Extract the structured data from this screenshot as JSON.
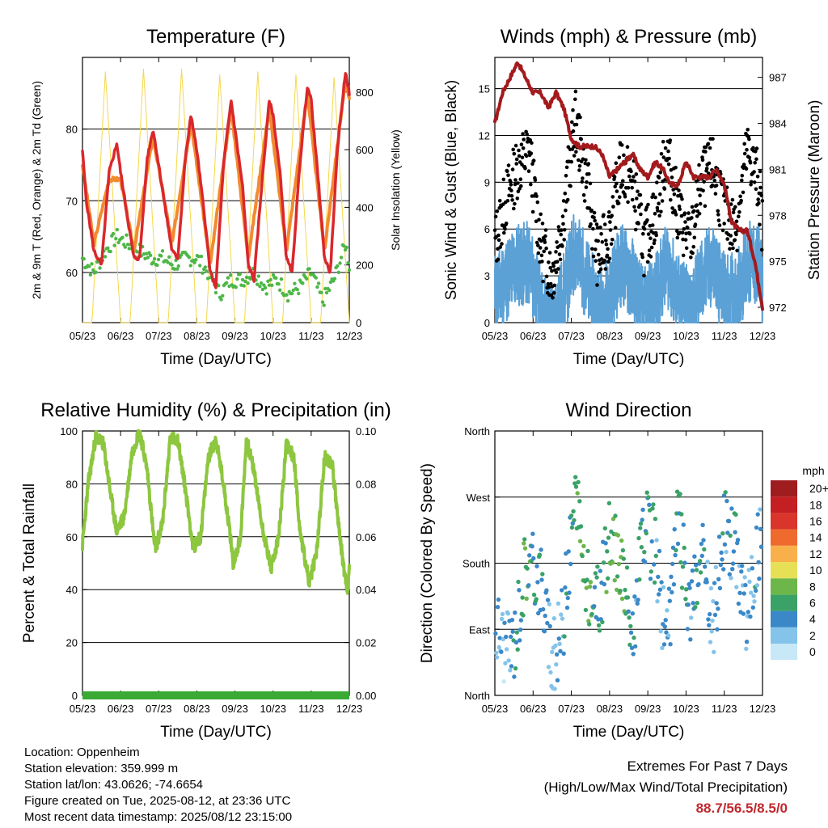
{
  "temperature": {
    "title": "Temperature (F)",
    "ylabel_left": "2m & 9m T (Red, Orange) & 2m Td (Green)",
    "ylabel_right": "Solar Insolation (Yellow)",
    "xlabel": "Time (Day/UTC)",
    "left_ticks": [
      "60",
      "70",
      "80"
    ],
    "right_ticks": [
      "0",
      "200",
      "400",
      "600",
      "800"
    ],
    "x_ticks": [
      "05/23",
      "06/23",
      "07/23",
      "08/23",
      "09/23",
      "10/23",
      "11/23",
      "12/23"
    ]
  },
  "winds": {
    "title": "Winds (mph) & Pressure (mb)",
    "ylabel_left": "Sonic Wind & Gust (Blue, Black)",
    "ylabel_right": "Station Pressure (Maroon)",
    "xlabel": "Time (Day/UTC)",
    "left_ticks": [
      "0",
      "3",
      "6",
      "9",
      "12",
      "15"
    ],
    "right_ticks": [
      "972",
      "975",
      "978",
      "981",
      "984",
      "987"
    ],
    "x_ticks": [
      "05/23",
      "06/23",
      "07/23",
      "08/23",
      "09/23",
      "10/23",
      "11/23",
      "12/23"
    ]
  },
  "humidity": {
    "title": "Relative Humidity (%) & Precipitation (in)",
    "ylabel_left": "Percent & Total Rainfall",
    "xlabel": "Time (Day/UTC)",
    "left_ticks": [
      "0",
      "20",
      "40",
      "60",
      "80",
      "100"
    ],
    "right_ticks": [
      "0.00",
      "0.02",
      "0.04",
      "0.06",
      "0.08",
      "0.10"
    ],
    "x_ticks": [
      "05/23",
      "06/23",
      "07/23",
      "08/23",
      "09/23",
      "10/23",
      "11/23",
      "12/23"
    ]
  },
  "direction": {
    "title": "Wind Direction",
    "ylabel_left": "Direction (Colored By Speed)",
    "xlabel": "Time (Day/UTC)",
    "left_ticks": [
      "North",
      "East",
      "South",
      "West",
      "North"
    ],
    "x_ticks": [
      "05/23",
      "06/23",
      "07/23",
      "08/23",
      "09/23",
      "10/23",
      "11/23",
      "12/23"
    ],
    "legend_title": "mph",
    "legend_labels": [
      "0",
      "2",
      "4",
      "6",
      "8",
      "10",
      "12",
      "14",
      "16",
      "18",
      "20+"
    ],
    "legend_colors": [
      "#c6e8f7",
      "#85c4ea",
      "#3a88c8",
      "#3aa267",
      "#6db64a",
      "#e6e057",
      "#f9b04b",
      "#ef6a2d",
      "#d9352a",
      "#c41f23",
      "#9f1c1f"
    ]
  },
  "info": {
    "location": "Location: Oppenheim",
    "elevation": "Station elevation: 359.999 m",
    "latlon": "Station lat/lon: 43.0626; -74.6654",
    "created": "Figure created on Tue, 2025-08-12, at 23:36 UTC",
    "recent": "Most recent data timestamp: 2025/08/12 23:15:00"
  },
  "extremes": {
    "heading": "Extremes For Past 7 Days",
    "subheading": "(High/Low/Max Wind/Total Precipitation)",
    "values": "88.7/56.5/8.5/0"
  },
  "colors": {
    "temp2m": "#d9282c",
    "temp9m": "#f28a30",
    "dewpoint": "#4db748",
    "solar": "#f5d84a",
    "gust": "#000000",
    "wind": "#5ba1d6",
    "pressure": "#a31a1d",
    "rh": "#8dc63f",
    "precip": "#3aaa35"
  },
  "chart_data": [
    {
      "type": "line",
      "title": "Temperature (F)",
      "xlabel": "Time (Day/UTC)",
      "x_categories": [
        "05/23",
        "06/23",
        "07/23",
        "08/23",
        "09/23",
        "10/23",
        "11/23",
        "12/23"
      ],
      "ylim": [
        53,
        90
      ],
      "y2lim": [
        0,
        920
      ],
      "series": [
        {
          "name": "2m T",
          "axis": "left",
          "x": [
            0,
            0.1,
            0.3,
            0.5,
            0.7,
            0.9,
            1.0,
            1.2,
            1.35,
            1.5,
            1.7,
            1.85,
            2.0,
            2.2,
            2.35,
            2.5,
            2.7,
            2.85,
            3.0,
            3.2,
            3.35,
            3.5,
            3.7,
            3.9,
            4.0,
            4.2,
            4.35,
            4.5,
            4.7,
            4.9,
            5.0,
            5.2,
            5.35,
            5.5,
            5.7,
            5.9,
            6.0,
            6.2,
            6.35,
            6.5,
            6.7,
            6.9,
            7.0
          ],
          "values": [
            77,
            70,
            63,
            61,
            74,
            78,
            74,
            67,
            62,
            62,
            76,
            80,
            75,
            68,
            63,
            62,
            76,
            82,
            77,
            68,
            60,
            58,
            75,
            84,
            80,
            72,
            61,
            59,
            72,
            84,
            82,
            73,
            62,
            60,
            75,
            86,
            84,
            72,
            62,
            60,
            78,
            88,
            85
          ]
        },
        {
          "name": "9m T",
          "axis": "left",
          "x": [
            0,
            0.3,
            0.7,
            1.0,
            1.35,
            1.85,
            2.35,
            2.85,
            3.35,
            3.9,
            4.35,
            4.9,
            5.35,
            5.9,
            6.35,
            6.9,
            7.0
          ],
          "values": [
            75,
            64,
            73,
            73,
            63,
            79,
            64,
            81,
            61,
            83,
            62,
            83,
            63,
            85,
            63,
            87,
            84
          ]
        },
        {
          "name": "2m Td",
          "axis": "left",
          "x": [
            0,
            0.3,
            0.6,
            0.9,
            1.2,
            1.5,
            1.8,
            2.1,
            2.4,
            2.7,
            3.0,
            3.3,
            3.6,
            3.9,
            4.2,
            4.5,
            4.8,
            5.1,
            5.4,
            5.7,
            6.0,
            6.3,
            6.6,
            6.9,
            7.0
          ],
          "values": [
            62,
            60,
            63,
            65,
            64,
            63,
            62,
            62,
            61,
            62,
            62,
            60,
            57,
            59,
            59,
            60,
            58,
            59,
            57,
            58,
            60,
            56,
            59,
            64,
            61
          ]
        },
        {
          "name": "Solar Insolation",
          "axis": "right",
          "x": [
            0.0,
            0.25,
            0.6,
            1.0,
            1.25,
            1.6,
            2.0,
            2.25,
            2.6,
            3.0,
            3.25,
            3.6,
            4.0,
            4.25,
            4.6,
            5.0,
            5.25,
            5.6,
            6.0,
            6.25,
            6.6,
            7.0
          ],
          "values": [
            0,
            0,
            870,
            0,
            0,
            880,
            0,
            0,
            880,
            0,
            0,
            860,
            0,
            0,
            870,
            0,
            0,
            860,
            0,
            0,
            850,
            0
          ]
        }
      ]
    },
    {
      "type": "line",
      "title": "Winds (mph) & Pressure (mb)",
      "xlabel": "Time (Day/UTC)",
      "x_categories": [
        "05/23",
        "06/23",
        "07/23",
        "08/23",
        "09/23",
        "10/23",
        "11/23",
        "12/23"
      ],
      "ylim": [
        0,
        17
      ],
      "y2lim": [
        971,
        988.3
      ],
      "series": [
        {
          "name": "Station Pressure",
          "axis": "right",
          "x": [
            0,
            0.2,
            0.4,
            0.6,
            0.8,
            1.0,
            1.2,
            1.4,
            1.6,
            1.8,
            2.0,
            2.2,
            2.4,
            2.6,
            2.8,
            3.0,
            3.2,
            3.4,
            3.6,
            3.8,
            4.0,
            4.2,
            4.4,
            4.6,
            4.8,
            5.0,
            5.2,
            5.4,
            5.6,
            5.8,
            6.0,
            6.2,
            6.4,
            6.6,
            6.8,
            7.0
          ],
          "values": [
            984,
            986,
            987,
            988,
            987,
            986,
            986,
            985,
            986,
            985,
            983,
            982.5,
            982.5,
            982.5,
            982,
            980.5,
            981,
            981.5,
            982,
            981,
            980.5,
            981.5,
            981,
            980,
            980,
            981.5,
            980.5,
            980.5,
            980.5,
            981,
            980,
            977.5,
            977,
            977,
            975,
            972
          ]
        },
        {
          "name": "Sonic Wind",
          "axis": "left",
          "x": [
            0,
            0.3,
            0.6,
            0.9,
            1.2,
            1.5,
            1.8,
            2.1,
            2.4,
            2.7,
            3.0,
            3.3,
            3.6,
            3.9,
            4.2,
            4.5,
            4.8,
            5.1,
            5.4,
            5.7,
            6.0,
            6.3,
            6.6,
            6.9,
            7.0
          ],
          "values": [
            3,
            4,
            5,
            5,
            2,
            1,
            3,
            6,
            4,
            2,
            3,
            5,
            4,
            2,
            3,
            5,
            3,
            2,
            4,
            5,
            3,
            3,
            5,
            5,
            3
          ]
        },
        {
          "name": "Gust",
          "axis": "left",
          "x": [
            0,
            0.3,
            0.6,
            0.9,
            1.2,
            1.5,
            1.8,
            2.1,
            2.4,
            2.7,
            3.0,
            3.3,
            3.6,
            3.9,
            4.2,
            4.5,
            4.8,
            5.1,
            5.4,
            5.7,
            6.0,
            6.3,
            6.6,
            6.9,
            7.0
          ],
          "values": [
            5,
            8,
            10,
            11,
            5,
            3,
            7,
            13,
            9,
            4,
            6,
            10,
            9,
            5,
            7,
            11,
            7,
            5,
            9,
            10,
            7,
            6,
            11,
            9,
            6
          ]
        }
      ]
    },
    {
      "type": "line",
      "title": "Relative Humidity (%) & Precipitation (in)",
      "xlabel": "Time (Day/UTC)",
      "x_categories": [
        "05/23",
        "06/23",
        "07/23",
        "08/23",
        "09/23",
        "10/23",
        "11/23",
        "12/23"
      ],
      "ylim": [
        0,
        100
      ],
      "y2lim": [
        0,
        0.1
      ],
      "series": [
        {
          "name": "Relative Humidity",
          "axis": "left",
          "x": [
            0,
            0.15,
            0.35,
            0.55,
            0.75,
            0.9,
            1.1,
            1.3,
            1.5,
            1.7,
            1.9,
            2.1,
            2.3,
            2.5,
            2.7,
            2.9,
            3.1,
            3.3,
            3.5,
            3.7,
            3.9,
            3.95,
            4.15,
            4.3,
            4.5,
            4.7,
            4.95,
            5.15,
            5.35,
            5.55,
            5.7,
            5.95,
            6.15,
            6.35,
            6.55,
            6.75,
            6.95,
            7.0
          ],
          "values": [
            57,
            80,
            98,
            95,
            75,
            62,
            68,
            92,
            100,
            85,
            55,
            65,
            97,
            97,
            78,
            56,
            60,
            90,
            97,
            80,
            58,
            50,
            60,
            97,
            85,
            65,
            48,
            60,
            95,
            90,
            63,
            42,
            55,
            90,
            88,
            60,
            38,
            48
          ]
        },
        {
          "name": "Total Precipitation",
          "axis": "right",
          "x": [
            0,
            7.0
          ],
          "values": [
            0,
            0
          ]
        }
      ]
    },
    {
      "type": "scatter",
      "title": "Wind Direction",
      "xlabel": "Time (Day/UTC)",
      "x_categories": [
        "05/23",
        "06/23",
        "07/23",
        "08/23",
        "09/23",
        "10/23",
        "11/23",
        "12/23"
      ],
      "y_categories": [
        "North",
        "East",
        "South",
        "West",
        "North"
      ],
      "ylim": [
        0,
        360
      ],
      "series": [
        {
          "name": "Direction",
          "x": [
            0.1,
            0.3,
            0.5,
            0.8,
            1.2,
            1.5,
            1.8,
            2.1,
            2.4,
            2.7,
            3.0,
            3.3,
            3.6,
            3.9,
            4.2,
            4.5,
            4.8,
            5.1,
            5.4,
            5.7,
            6.0,
            6.3,
            6.6,
            6.9
          ],
          "values": [
            90,
            60,
            70,
            180,
            160,
            40,
            110,
            270,
            150,
            120,
            210,
            180,
            80,
            230,
            200,
            60,
            250,
            100,
            190,
            90,
            230,
            200,
            110,
            210
          ],
          "speeds": [
            3,
            2,
            4,
            6,
            5,
            2,
            4,
            6,
            8,
            5,
            6,
            8,
            4,
            5,
            4,
            3,
            6,
            4,
            5,
            3,
            4,
            4,
            3,
            4
          ]
        }
      ]
    }
  ]
}
